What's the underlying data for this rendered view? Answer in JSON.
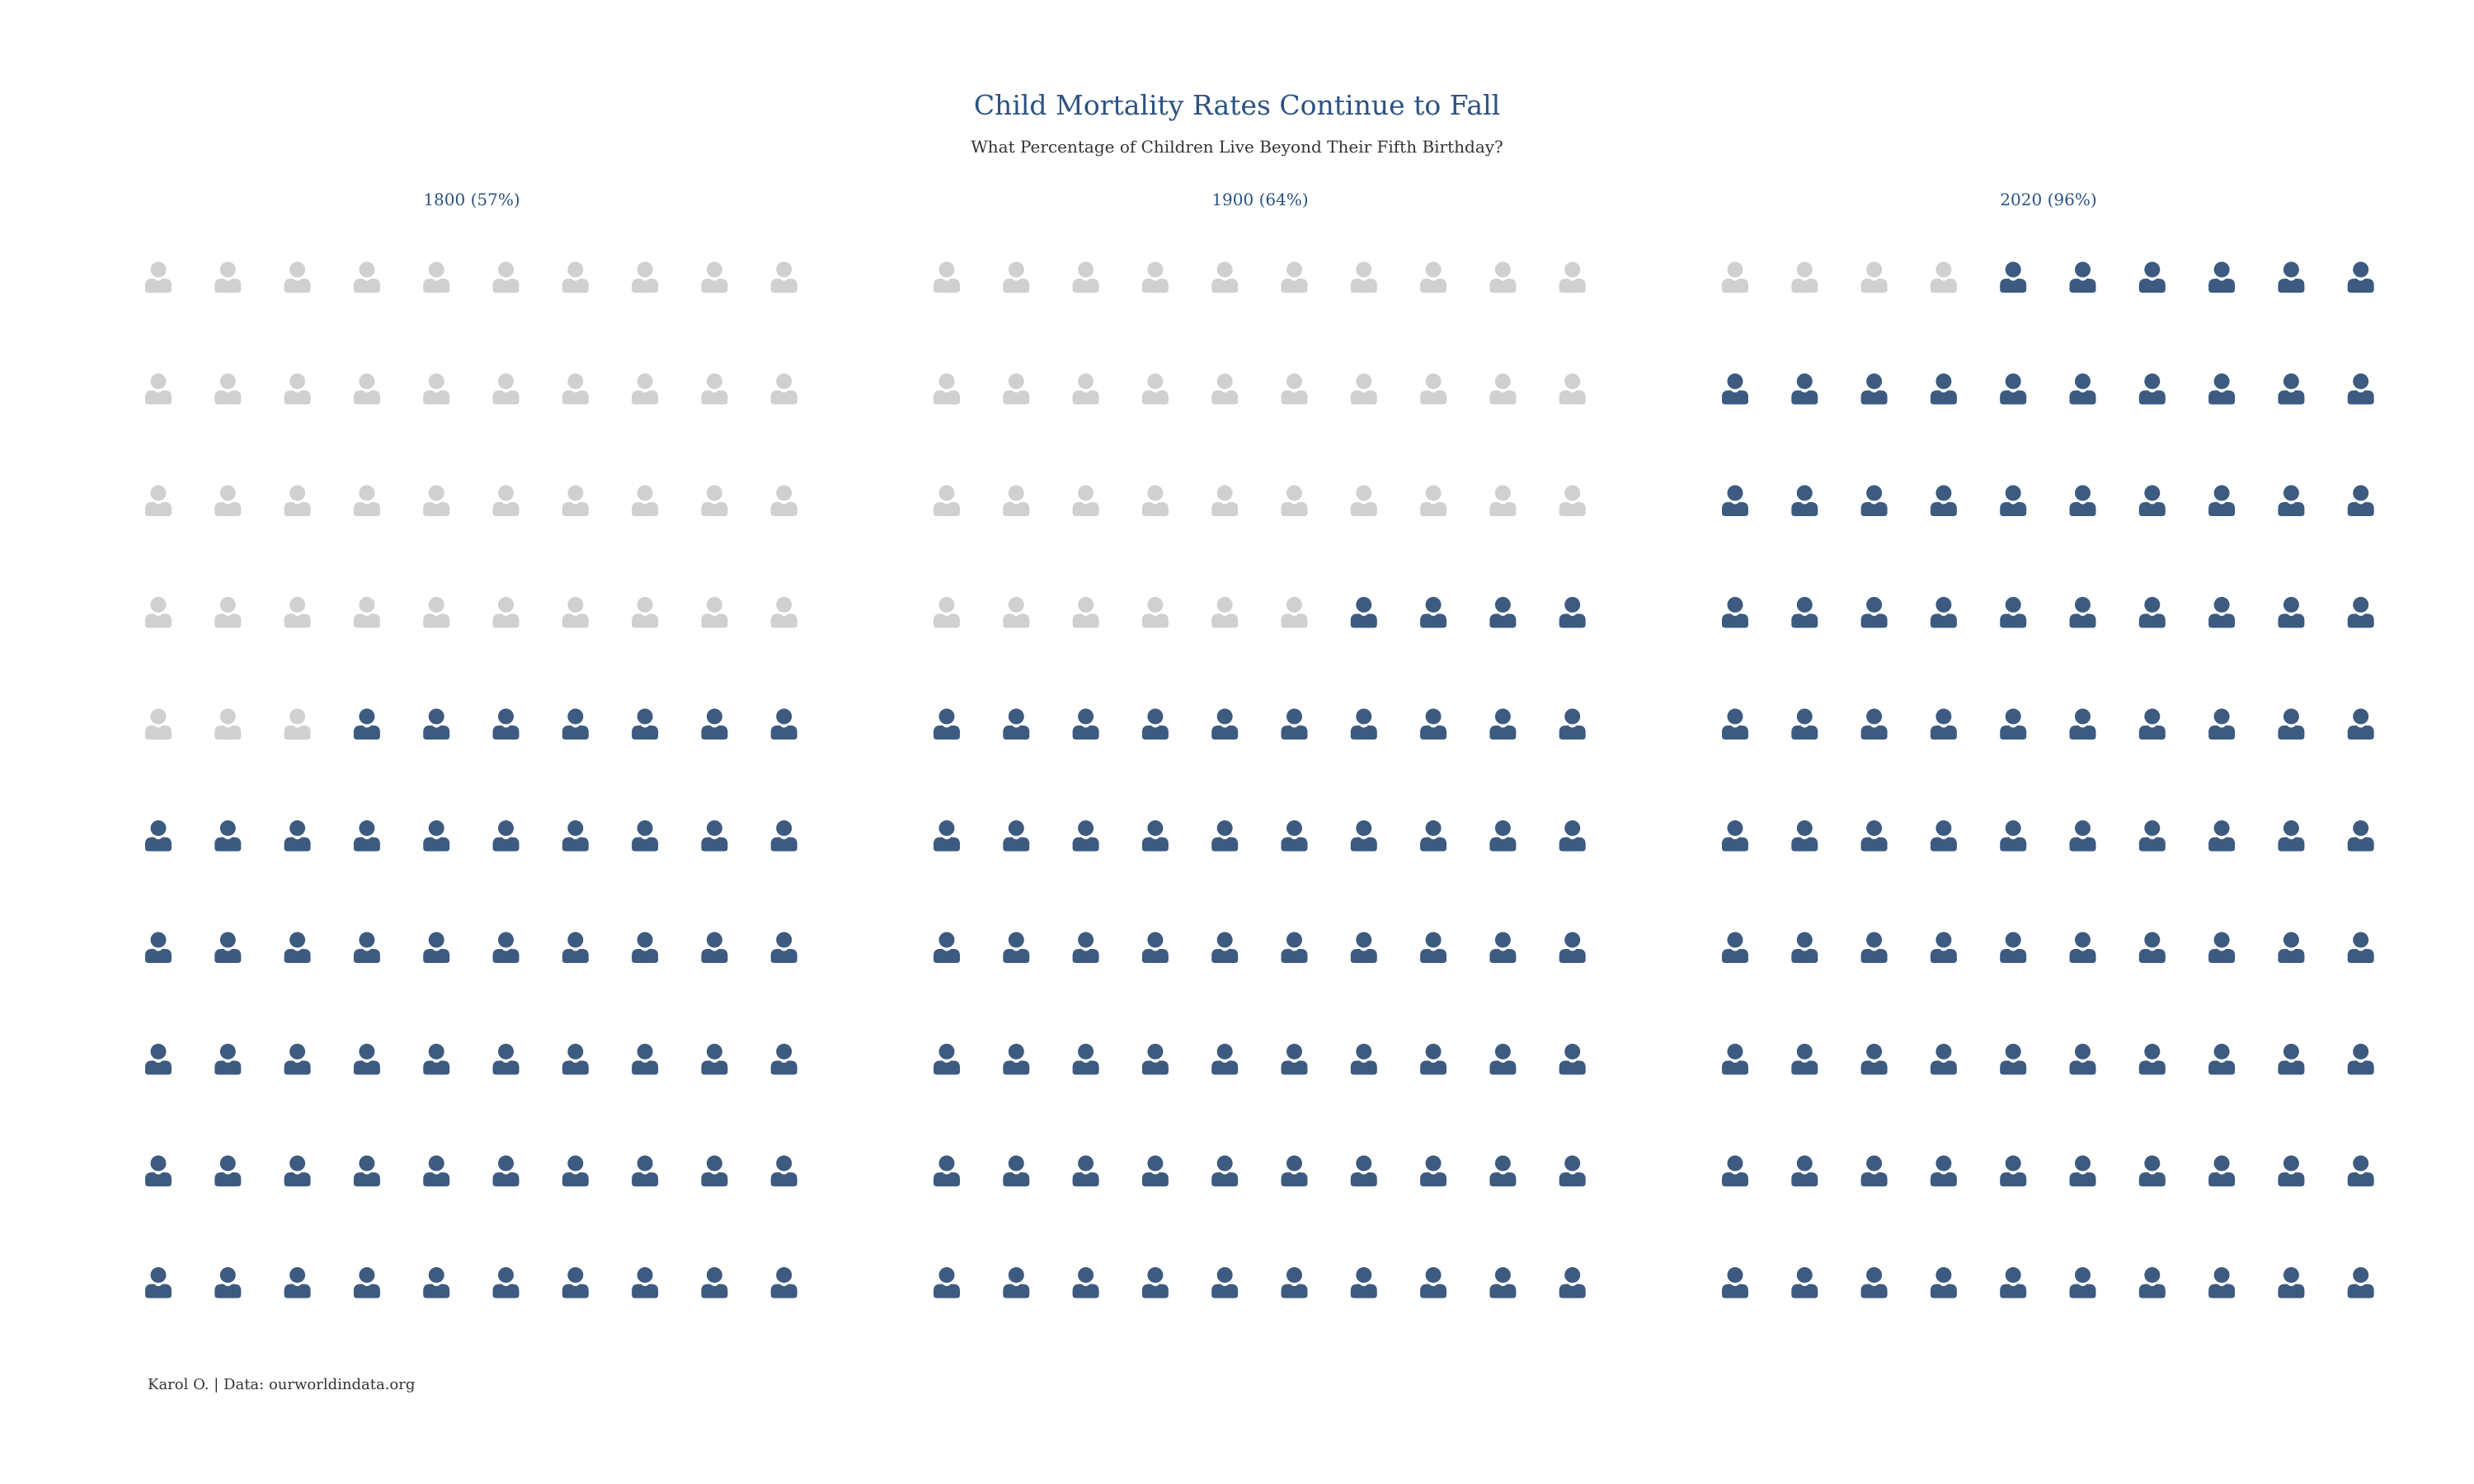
{
  "title": "Child Mortality Rates Continue to Fall",
  "subtitle": "What Percentage of Children Live Beyond Their Fifth Birthday?",
  "caption": "Karol O. | Data: ourworldindata.org",
  "colors": {
    "survived": "#3d5a80",
    "not_survived": "#d0d0d0",
    "title": "#2c5282",
    "text": "#333333"
  },
  "chart_data": {
    "type": "pictogram",
    "icon": "person-icon",
    "grid": {
      "rows": 10,
      "cols": 10
    },
    "fill_order": "from bottom-right",
    "panels": [
      {
        "label": "1800 (57%)",
        "year": 1800,
        "percent": 57
      },
      {
        "label": "1900 (64%)",
        "year": 1900,
        "percent": 64
      },
      {
        "label": "2020 (96%)",
        "year": 2020,
        "percent": 96
      }
    ]
  }
}
